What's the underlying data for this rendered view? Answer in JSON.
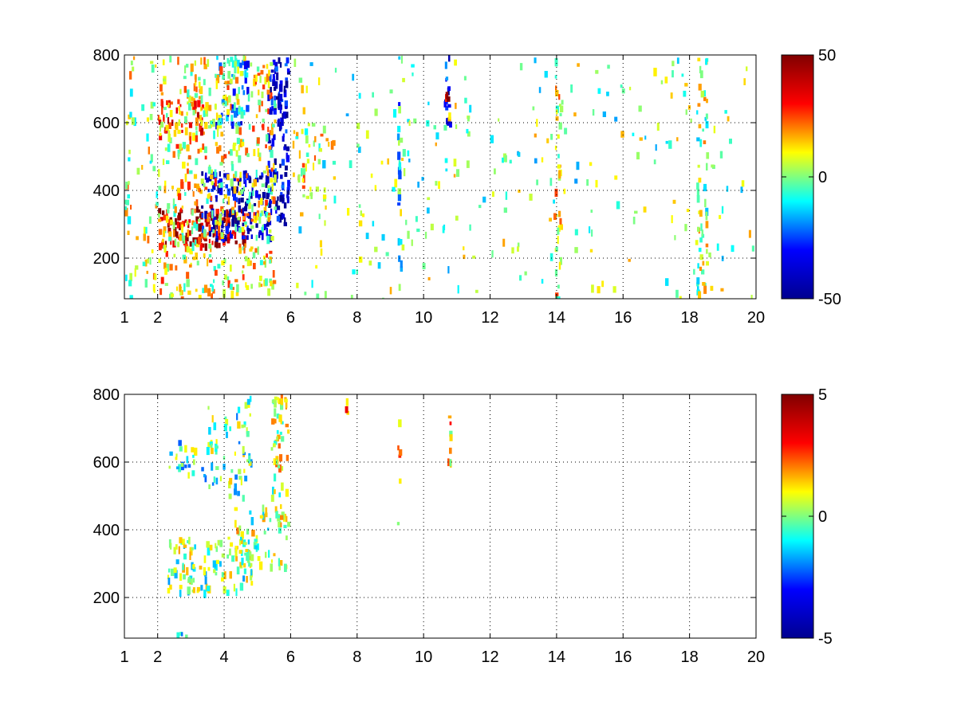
{
  "figure": {
    "background": "#ffffff",
    "colormap": "jet",
    "colormap_stops": [
      "#00008f",
      "#0000ff",
      "#00ffff",
      "#ffff00",
      "#ff0000",
      "#800000"
    ]
  },
  "chart_data": [
    {
      "type": "heatmap",
      "title": "",
      "xlabel": "",
      "ylabel": "",
      "xlim": [
        1,
        20
      ],
      "ylim": [
        80,
        800
      ],
      "xticks": [
        1,
        2,
        4,
        6,
        8,
        10,
        12,
        14,
        16,
        18,
        20
      ],
      "xtick_labels": [
        "1",
        "2",
        "4",
        "6",
        "8",
        "10",
        "12",
        "14",
        "16",
        "18",
        "20"
      ],
      "yticks": [
        200,
        400,
        600,
        800
      ],
      "ytick_labels": [
        "200",
        "400",
        "600",
        "800"
      ],
      "grid": true,
      "colorbar": {
        "clim": [
          -50,
          50
        ],
        "tick_labels": [
          "50",
          "0",
          "-50"
        ]
      },
      "features": [
        {
          "x": [
            2.0,
            4.6
          ],
          "y": [
            240,
            360
          ],
          "value": 40,
          "density": 0.9
        },
        {
          "x": [
            2.0,
            3.4
          ],
          "y": [
            560,
            680
          ],
          "value": 25,
          "density": 0.7
        },
        {
          "x": [
            3.3,
            5.4
          ],
          "y": [
            260,
            460
          ],
          "value": -42,
          "density": 0.8
        },
        {
          "x": [
            5.3,
            5.9
          ],
          "y": [
            300,
            800
          ],
          "value": -38,
          "density": 0.85
        },
        {
          "x": [
            3.7,
            4.7
          ],
          "y": [
            600,
            800
          ],
          "value": -20,
          "density": 0.6
        },
        {
          "x": [
            2.0,
            5.5
          ],
          "y": [
            80,
            800
          ],
          "value": 10,
          "density": 0.45
        },
        {
          "x": [
            1.0,
            2.0
          ],
          "y": [
            80,
            800
          ],
          "value": 5,
          "density": 0.2
        },
        {
          "x": [
            6.0,
            7.3
          ],
          "y": [
            380,
            600
          ],
          "value": 8,
          "density": 0.35
        },
        {
          "x": [
            10.6,
            10.8
          ],
          "y": [
            600,
            800
          ],
          "value": -35,
          "density": 0.9
        },
        {
          "x": [
            10.6,
            10.8
          ],
          "y": [
            660,
            700
          ],
          "value": 45,
          "density": 0.9
        },
        {
          "x": [
            9.2,
            9.3
          ],
          "y": [
            80,
            800
          ],
          "value": -12,
          "density": 0.6
        },
        {
          "x": [
            13.9,
            14.1
          ],
          "y": [
            80,
            800
          ],
          "value": 8,
          "density": 0.55
        },
        {
          "x": [
            18.2,
            18.5
          ],
          "y": [
            80,
            800
          ],
          "value": 3,
          "density": 0.6
        },
        {
          "x": [
            6.0,
            20.0
          ],
          "y": [
            80,
            800
          ],
          "value": 0,
          "density": 0.06
        }
      ]
    },
    {
      "type": "heatmap",
      "title": "",
      "xlabel": "",
      "ylabel": "",
      "xlim": [
        1,
        20
      ],
      "ylim": [
        80,
        800
      ],
      "xticks": [
        1,
        2,
        4,
        6,
        8,
        10,
        12,
        14,
        16,
        18,
        20
      ],
      "xtick_labels": [
        "1",
        "2",
        "4",
        "6",
        "8",
        "10",
        "12",
        "14",
        "16",
        "18",
        "20"
      ],
      "yticks": [
        200,
        400,
        600,
        800
      ],
      "ytick_labels": [
        "200",
        "400",
        "600",
        "800"
      ],
      "grid": true,
      "colorbar": {
        "clim": [
          -5,
          5
        ],
        "tick_labels": [
          "5",
          "0",
          "-5"
        ]
      },
      "features": [
        {
          "x": [
            2.2,
            4.8
          ],
          "y": [
            220,
            380
          ],
          "value": 0,
          "density": 0.6
        },
        {
          "x": [
            4.3,
            5.4
          ],
          "y": [
            300,
            480
          ],
          "value": 0.3,
          "density": 0.5
        },
        {
          "x": [
            5.4,
            5.9
          ],
          "y": [
            280,
            800
          ],
          "value": 0.5,
          "density": 0.65
        },
        {
          "x": [
            2.3,
            3.6
          ],
          "y": [
            560,
            680
          ],
          "value": -0.5,
          "density": 0.4
        },
        {
          "x": [
            3.5,
            4.8
          ],
          "y": [
            500,
            800
          ],
          "value": -0.3,
          "density": 0.35
        },
        {
          "x": [
            2.3,
            2.9
          ],
          "y": [
            80,
            100
          ],
          "value": -0.5,
          "density": 0.8
        },
        {
          "x": [
            9.2,
            9.3
          ],
          "y": [
            180,
            740
          ],
          "value": 1.0,
          "density": 0.25
        },
        {
          "x": [
            10.7,
            10.8
          ],
          "y": [
            600,
            790
          ],
          "value": 1.5,
          "density": 0.9
        },
        {
          "x": [
            7.6,
            7.7
          ],
          "y": [
            720,
            800
          ],
          "value": 2.0,
          "density": 0.7
        }
      ]
    }
  ]
}
